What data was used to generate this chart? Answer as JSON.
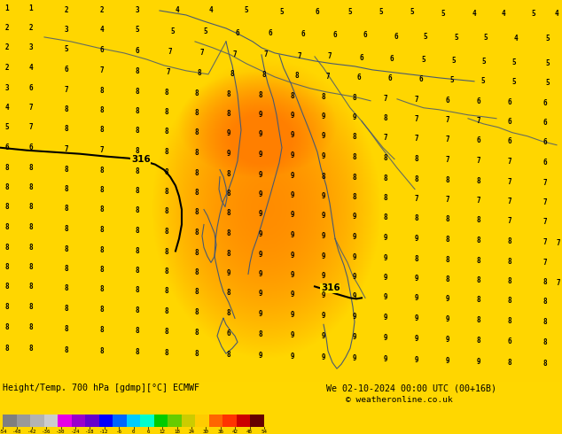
{
  "title_left": "Height/Temp. 700 hPa [gdmp][°C] ECMWF",
  "title_right": "We 02-10-2024 00:00 UTC (00+16B)",
  "copyright": "© weatheronline.co.uk",
  "colorbar_ticks": [
    -54,
    -48,
    -42,
    -36,
    -30,
    -24,
    -18,
    -12,
    -6,
    0,
    6,
    12,
    18,
    24,
    30,
    36,
    42,
    48,
    54
  ],
  "colorbar_colors": [
    "#7f7f7f",
    "#999999",
    "#b3b3b3",
    "#cccccc",
    "#e600e6",
    "#9900cc",
    "#6600cc",
    "#0000ff",
    "#0066ff",
    "#00ccff",
    "#00ffcc",
    "#00cc00",
    "#66cc00",
    "#cccc00",
    "#ffcc00",
    "#ff6600",
    "#ff3300",
    "#cc0000",
    "#660000"
  ],
  "bg_yellow": "#ffd700",
  "bg_orange": "#ff8000",
  "fig_width": 6.34,
  "fig_height": 4.9,
  "dpi": 100
}
